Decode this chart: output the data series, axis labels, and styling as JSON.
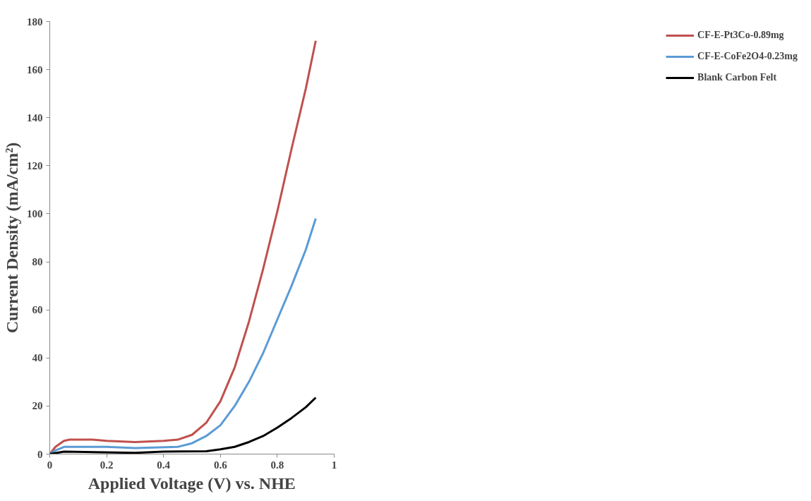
{
  "chart_data": {
    "type": "line",
    "xlabel": "Applied Voltage (V) vs. NHE",
    "ylabel": "Current Density (mA/cm²)",
    "xlim": [
      0,
      1
    ],
    "ylim": [
      0,
      180
    ],
    "xticks": [
      0,
      0.2,
      0.4,
      0.6,
      0.8,
      1
    ],
    "yticks": [
      0,
      20,
      40,
      60,
      80,
      100,
      120,
      140,
      160,
      180
    ],
    "grid": false,
    "legend": "right",
    "marker": "none",
    "line_style": "solid",
    "series": [
      {
        "name": "CF-E-Pt3Co-0.89mg",
        "color": "#c0504d",
        "x": [
          0,
          0.02,
          0.05,
          0.07,
          0.15,
          0.2,
          0.3,
          0.4,
          0.45,
          0.5,
          0.55,
          0.6,
          0.65,
          0.7,
          0.75,
          0.8,
          0.85,
          0.9,
          0.935
        ],
        "values": [
          0,
          3,
          5.5,
          6,
          6,
          5.5,
          5,
          5.5,
          6,
          8,
          13,
          22,
          36,
          55,
          77,
          101,
          127,
          152,
          172
        ]
      },
      {
        "name": "CF-E-CoFe2O4-0.23mg",
        "color": "#5b9bd5",
        "x": [
          0,
          0.02,
          0.05,
          0.2,
          0.3,
          0.45,
          0.5,
          0.55,
          0.6,
          0.65,
          0.7,
          0.75,
          0.8,
          0.85,
          0.9,
          0.935
        ],
        "values": [
          0,
          1.5,
          3,
          3,
          2.5,
          3,
          4.5,
          7.5,
          12,
          20,
          30,
          42,
          56,
          70,
          85,
          98
        ]
      },
      {
        "name": "Blank Carbon Felt",
        "color": "#000000",
        "x": [
          0,
          0.05,
          0.3,
          0.4,
          0.55,
          0.6,
          0.65,
          0.7,
          0.75,
          0.8,
          0.85,
          0.9,
          0.935
        ],
        "values": [
          0,
          1,
          0.5,
          1,
          1.2,
          2,
          3,
          5,
          7.5,
          11,
          15,
          19.5,
          23.5
        ]
      }
    ]
  }
}
